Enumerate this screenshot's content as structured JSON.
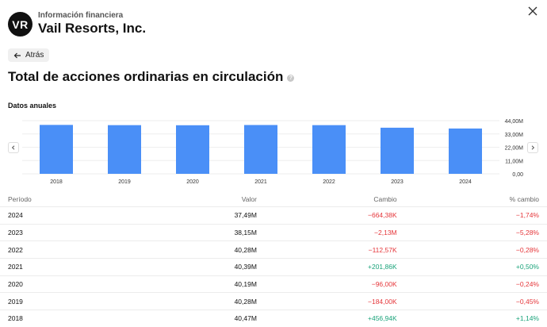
{
  "header": {
    "logo_text": "VR",
    "eyebrow": "Información financiera",
    "company": "Vail Resorts, Inc."
  },
  "back_label": "Atrás",
  "title": "Total de acciones ordinarias en circulación",
  "subheading": "Datos anuales",
  "chart_data": {
    "type": "bar",
    "categories": [
      "2018",
      "2019",
      "2020",
      "2021",
      "2022",
      "2023",
      "2024"
    ],
    "values": [
      40.47,
      40.28,
      40.19,
      40.39,
      40.28,
      38.15,
      37.49
    ],
    "ylim": [
      0,
      44
    ],
    "yticks": [
      "44,00M",
      "33,00M",
      "22,00M",
      "11,00M",
      "0,00"
    ],
    "ytick_values": [
      44,
      33,
      22,
      11,
      0
    ],
    "bar_color": "#4a8ff7",
    "grid": true
  },
  "table": {
    "headers": [
      "Período",
      "Valor",
      "Cambio",
      "% cambio"
    ],
    "rows": [
      [
        "2024",
        "37,49M",
        "−664,38K",
        "−1,74%"
      ],
      [
        "2023",
        "38,15M",
        "−2,13M",
        "−5,28%"
      ],
      [
        "2022",
        "40,28M",
        "−112,57K",
        "−0,28%"
      ],
      [
        "2021",
        "40,39M",
        "+201,86K",
        "+0,50%"
      ],
      [
        "2020",
        "40,19M",
        "−96,00K",
        "−0,24%"
      ],
      [
        "2019",
        "40,28M",
        "−184,00K",
        "−0,45%"
      ],
      [
        "2018",
        "40,47M",
        "+456,94K",
        "+1,14%"
      ]
    ]
  },
  "colors": {
    "negative": "#e5363a",
    "positive": "#1aa37a"
  }
}
